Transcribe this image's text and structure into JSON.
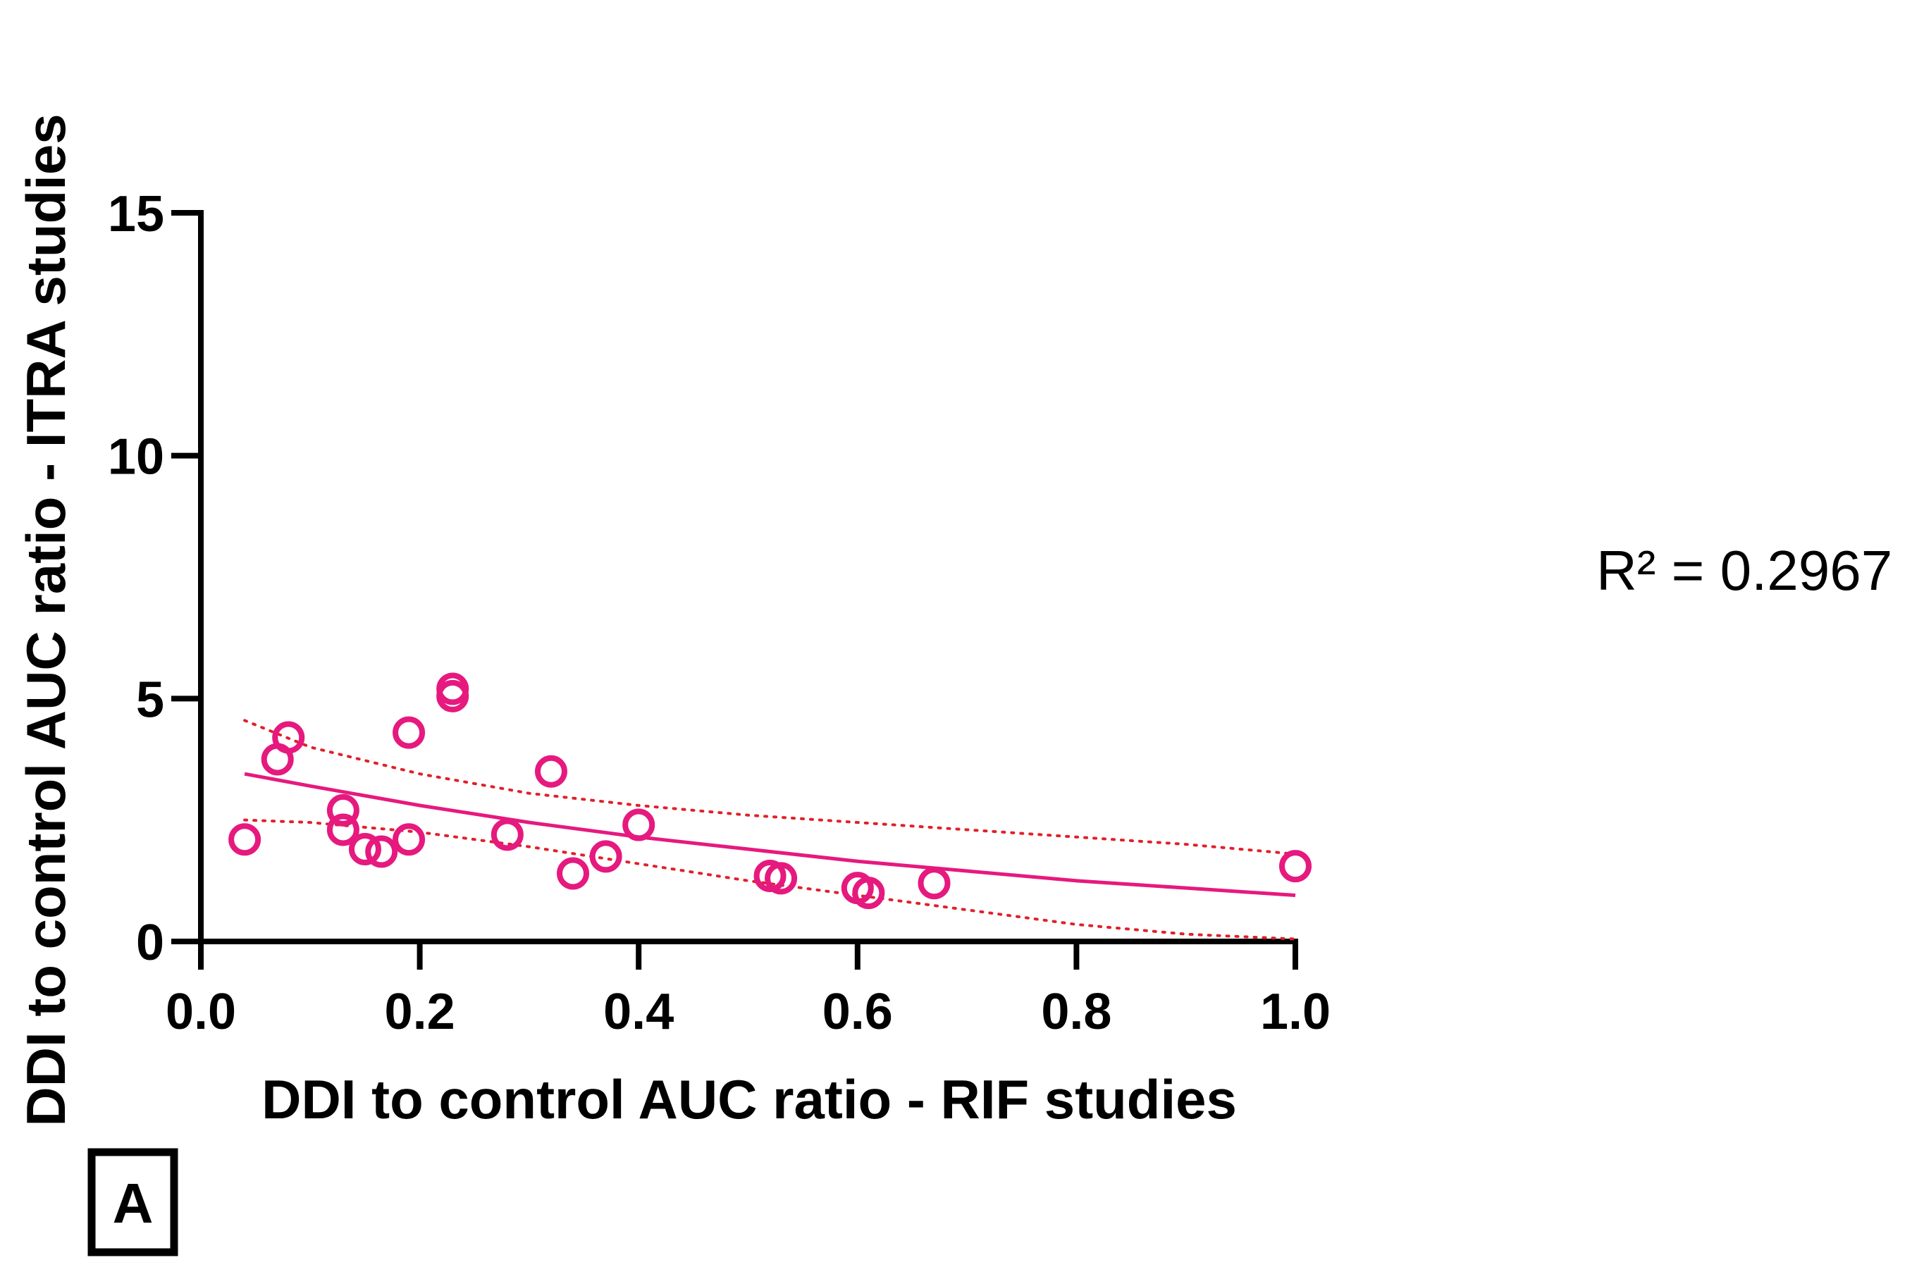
{
  "chart_data": {
    "type": "scatter",
    "xlabel": "DDI to control AUC ratio - RIF studies",
    "ylabel": "DDI to control AUC ratio - ITRA studies",
    "xlim": [
      0.0,
      1.0
    ],
    "ylim": [
      0,
      15
    ],
    "x_ticks": [
      "0.0",
      "0.2",
      "0.4",
      "0.6",
      "0.8",
      "1.0"
    ],
    "y_ticks": [
      "0",
      "5",
      "10",
      "15"
    ],
    "grid": false,
    "series": [
      {
        "name": "Studies",
        "marker": "open-circle",
        "color": "#e6197e",
        "points": [
          {
            "x": 0.04,
            "y": 2.1
          },
          {
            "x": 0.07,
            "y": 3.75
          },
          {
            "x": 0.08,
            "y": 4.2
          },
          {
            "x": 0.13,
            "y": 2.7
          },
          {
            "x": 0.13,
            "y": 2.3
          },
          {
            "x": 0.15,
            "y": 1.9
          },
          {
            "x": 0.165,
            "y": 1.85
          },
          {
            "x": 0.19,
            "y": 4.3
          },
          {
            "x": 0.19,
            "y": 2.1
          },
          {
            "x": 0.23,
            "y": 5.2
          },
          {
            "x": 0.23,
            "y": 5.05
          },
          {
            "x": 0.28,
            "y": 2.2
          },
          {
            "x": 0.32,
            "y": 3.5
          },
          {
            "x": 0.34,
            "y": 1.4
          },
          {
            "x": 0.37,
            "y": 1.75
          },
          {
            "x": 0.4,
            "y": 2.4
          },
          {
            "x": 0.52,
            "y": 1.35
          },
          {
            "x": 0.53,
            "y": 1.3
          },
          {
            "x": 0.6,
            "y": 1.1
          },
          {
            "x": 0.61,
            "y": 1.0
          },
          {
            "x": 0.67,
            "y": 1.2
          },
          {
            "x": 1.0,
            "y": 1.55
          }
        ]
      }
    ],
    "fit_curve": {
      "name": "Fitted curve",
      "color": "#e6197e",
      "style": "solid",
      "x": [
        0.04,
        0.1,
        0.2,
        0.3,
        0.4,
        0.5,
        0.6,
        0.7,
        0.8,
        0.9,
        1.0
      ],
      "y": [
        3.45,
        3.2,
        2.8,
        2.45,
        2.15,
        1.9,
        1.65,
        1.45,
        1.25,
        1.1,
        0.95
      ]
    },
    "confidence_band": {
      "name": "95% confidence band",
      "color": "#e0202a",
      "style": "dotted",
      "x": [
        0.04,
        0.1,
        0.2,
        0.3,
        0.4,
        0.5,
        0.6,
        0.7,
        0.8,
        0.9,
        1.0
      ],
      "upper": [
        4.55,
        4.0,
        3.45,
        3.05,
        2.8,
        2.6,
        2.45,
        2.3,
        2.15,
        2.0,
        1.8
      ],
      "lower": [
        2.5,
        2.45,
        2.25,
        1.95,
        1.6,
        1.25,
        0.95,
        0.65,
        0.35,
        0.15,
        0.05
      ]
    },
    "annotations": {
      "r_squared": "R² = 0.2967",
      "panel_label": "A"
    }
  }
}
